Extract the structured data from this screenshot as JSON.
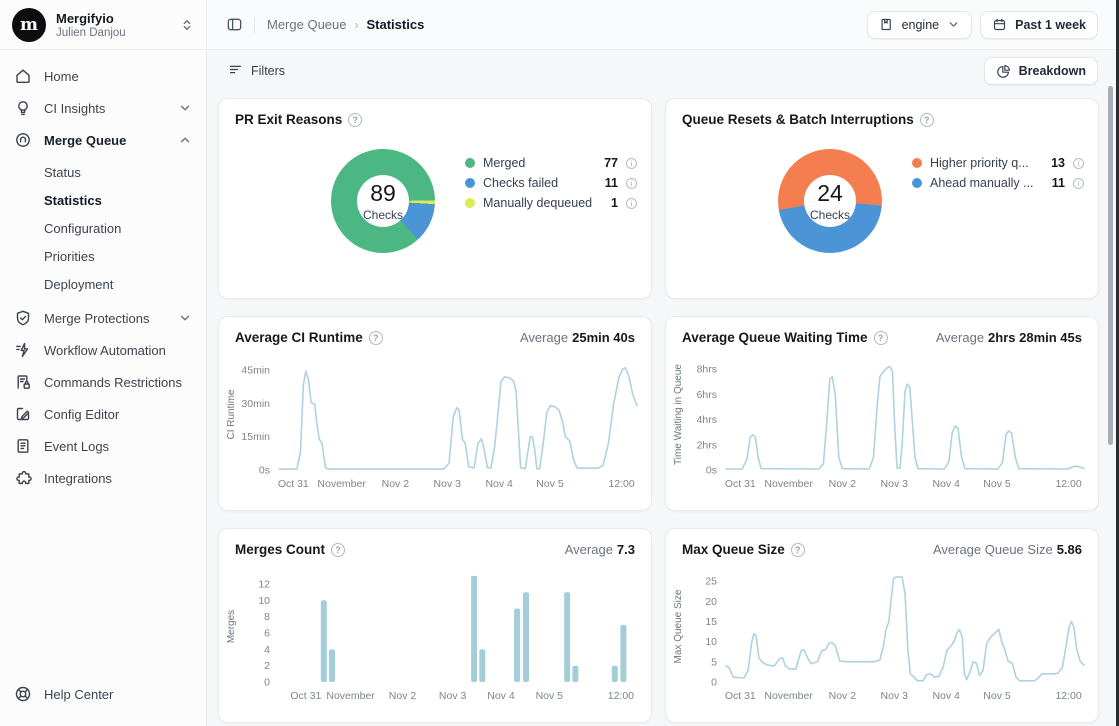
{
  "sidebar": {
    "org": "Mergifyio",
    "user": "Julien Danjou",
    "items": [
      {
        "label": "Home",
        "icon": "home-icon"
      },
      {
        "label": "CI Insights",
        "icon": "lightbulb-icon",
        "chevron": "down"
      },
      {
        "label": "Merge Queue",
        "icon": "merge-queue-icon",
        "chevron": "up",
        "active_section": true,
        "children": [
          {
            "label": "Status"
          },
          {
            "label": "Statistics",
            "active": true
          },
          {
            "label": "Configuration"
          },
          {
            "label": "Priorities"
          },
          {
            "label": "Deployment"
          }
        ]
      },
      {
        "label": "Merge Protections",
        "icon": "shield-check-icon",
        "chevron": "down"
      },
      {
        "label": "Workflow Automation",
        "icon": "workflow-icon"
      },
      {
        "label": "Commands Restrictions",
        "icon": "commands-lock-icon"
      },
      {
        "label": "Config Editor",
        "icon": "config-editor-icon"
      },
      {
        "label": "Event Logs",
        "icon": "event-logs-icon"
      },
      {
        "label": "Integrations",
        "icon": "integrations-icon"
      }
    ],
    "help_label": "Help Center"
  },
  "header": {
    "breadcrumb": {
      "parent": "Merge Queue",
      "current": "Statistics"
    },
    "scope_button": {
      "label": "engine"
    },
    "range_button": {
      "label": "Past 1 week"
    }
  },
  "toolbar": {
    "filters_label": "Filters",
    "breakdown_label": "Breakdown"
  },
  "chart_data": [
    {
      "type": "pie",
      "title": "PR Exit Reasons",
      "center_value": 89,
      "center_label": "Checks",
      "start_angle": 138,
      "draw_order": [
        0,
        2,
        1
      ],
      "slices": [
        {
          "label": "Merged",
          "value": 77,
          "color": "#4cb782"
        },
        {
          "label": "Checks failed",
          "value": 11,
          "color": "#4b95d6"
        },
        {
          "label": "Manually dequeued",
          "value": 1,
          "color": "#d9ec57"
        }
      ]
    },
    {
      "type": "pie",
      "title": "Queue Resets & Batch Interruptions",
      "center_value": 24,
      "center_label": "Checks",
      "start_angle": 260,
      "draw_order": [
        0,
        1
      ],
      "slices": [
        {
          "label": "Higher priority q...",
          "value": 13,
          "color": "#f57e51"
        },
        {
          "label": "Ahead manually ...",
          "value": 11,
          "color": "#4b95d6"
        }
      ]
    },
    {
      "type": "line",
      "title": "Average CI Runtime",
      "average_label": "Average",
      "average_value": "25min 40s",
      "ylabel": "CI Runtime",
      "color": "#aed2e0",
      "ylim": [
        0,
        50
      ],
      "yticks": [
        {
          "v": 0,
          "label": "0s"
        },
        {
          "v": 15,
          "label": "15min"
        },
        {
          "v": 30,
          "label": "30min"
        },
        {
          "v": 45,
          "label": "45min"
        }
      ],
      "xticks": [
        {
          "f": 0.04,
          "label": "Oct 31"
        },
        {
          "f": 0.175,
          "label": "November"
        },
        {
          "f": 0.325,
          "label": "Nov 2"
        },
        {
          "f": 0.47,
          "label": "Nov 3"
        },
        {
          "f": 0.615,
          "label": "Nov 4"
        },
        {
          "f": 0.757,
          "label": "Nov 5"
        },
        {
          "f": 0.957,
          "label": "12:00"
        }
      ],
      "points": [
        [
          0,
          0.4
        ],
        [
          0.05,
          0.4
        ],
        [
          0.06,
          8
        ],
        [
          0.068,
          38
        ],
        [
          0.075,
          44.5
        ],
        [
          0.082,
          41
        ],
        [
          0.09,
          30.5
        ],
        [
          0.1,
          29.5
        ],
        [
          0.105,
          22
        ],
        [
          0.112,
          14
        ],
        [
          0.12,
          12
        ],
        [
          0.13,
          1
        ],
        [
          0.14,
          0.4
        ],
        [
          0.46,
          0.4
        ],
        [
          0.475,
          3
        ],
        [
          0.487,
          24
        ],
        [
          0.497,
          28
        ],
        [
          0.503,
          27
        ],
        [
          0.512,
          14
        ],
        [
          0.52,
          12
        ],
        [
          0.53,
          1.5
        ],
        [
          0.545,
          1
        ],
        [
          0.556,
          12
        ],
        [
          0.565,
          14
        ],
        [
          0.572,
          10
        ],
        [
          0.582,
          1
        ],
        [
          0.592,
          1
        ],
        [
          0.602,
          10
        ],
        [
          0.612,
          26
        ],
        [
          0.62,
          40
        ],
        [
          0.63,
          42
        ],
        [
          0.645,
          41.5
        ],
        [
          0.655,
          40
        ],
        [
          0.662,
          36
        ],
        [
          0.668,
          20
        ],
        [
          0.675,
          1
        ],
        [
          0.688,
          0.6
        ],
        [
          0.695,
          8
        ],
        [
          0.702,
          15
        ],
        [
          0.708,
          15
        ],
        [
          0.715,
          8
        ],
        [
          0.72,
          0.6
        ],
        [
          0.728,
          0.6
        ],
        [
          0.738,
          12
        ],
        [
          0.748,
          26
        ],
        [
          0.758,
          29
        ],
        [
          0.77,
          28.5
        ],
        [
          0.782,
          27
        ],
        [
          0.792,
          22
        ],
        [
          0.8,
          15
        ],
        [
          0.812,
          13
        ],
        [
          0.822,
          5
        ],
        [
          0.832,
          1
        ],
        [
          0.845,
          0.8
        ],
        [
          0.87,
          0.8
        ],
        [
          0.89,
          0.8
        ],
        [
          0.905,
          2
        ],
        [
          0.92,
          12
        ],
        [
          0.935,
          30
        ],
        [
          0.95,
          42
        ],
        [
          0.96,
          45.5
        ],
        [
          0.968,
          46
        ],
        [
          0.978,
          42
        ],
        [
          0.988,
          34
        ],
        [
          1,
          29
        ]
      ]
    },
    {
      "type": "line",
      "title": "Average Queue Waiting Time",
      "average_label": "Average",
      "average_value": "2hrs 28min 45s",
      "ylabel": "Time Waiting in Queue",
      "color": "#aed2e0",
      "ylim": [
        0,
        8.8
      ],
      "yticks": [
        {
          "v": 0,
          "label": "0s"
        },
        {
          "v": 2,
          "label": "2hrs"
        },
        {
          "v": 4,
          "label": "4hrs"
        },
        {
          "v": 6,
          "label": "6hrs"
        },
        {
          "v": 8,
          "label": "8hrs"
        }
      ],
      "xticks": [
        {
          "f": 0.04,
          "label": "Oct 31"
        },
        {
          "f": 0.175,
          "label": "November"
        },
        {
          "f": 0.325,
          "label": "Nov 2"
        },
        {
          "f": 0.47,
          "label": "Nov 3"
        },
        {
          "f": 0.615,
          "label": "Nov 4"
        },
        {
          "f": 0.757,
          "label": "Nov 5"
        },
        {
          "f": 0.957,
          "label": "12:00"
        }
      ],
      "points": [
        [
          0,
          0.08
        ],
        [
          0.045,
          0.08
        ],
        [
          0.058,
          0.8
        ],
        [
          0.068,
          2.6
        ],
        [
          0.075,
          2.8
        ],
        [
          0.082,
          2.6
        ],
        [
          0.09,
          1
        ],
        [
          0.098,
          0.1
        ],
        [
          0.26,
          0.08
        ],
        [
          0.272,
          0.5
        ],
        [
          0.282,
          4
        ],
        [
          0.29,
          7.2
        ],
        [
          0.297,
          7.4
        ],
        [
          0.305,
          6
        ],
        [
          0.315,
          1
        ],
        [
          0.325,
          0.1
        ],
        [
          0.4,
          0.08
        ],
        [
          0.412,
          1
        ],
        [
          0.422,
          5
        ],
        [
          0.43,
          7.4
        ],
        [
          0.44,
          7.8
        ],
        [
          0.45,
          8.1
        ],
        [
          0.458,
          8.2
        ],
        [
          0.465,
          7.8
        ],
        [
          0.472,
          3
        ],
        [
          0.478,
          0.15
        ],
        [
          0.486,
          0.15
        ],
        [
          0.492,
          2
        ],
        [
          0.5,
          6.2
        ],
        [
          0.506,
          6.8
        ],
        [
          0.513,
          6.6
        ],
        [
          0.52,
          4
        ],
        [
          0.528,
          1
        ],
        [
          0.536,
          0.1
        ],
        [
          0.61,
          0.08
        ],
        [
          0.622,
          0.6
        ],
        [
          0.632,
          3
        ],
        [
          0.64,
          3.5
        ],
        [
          0.648,
          3.3
        ],
        [
          0.658,
          1
        ],
        [
          0.668,
          0.1
        ],
        [
          0.76,
          0.08
        ],
        [
          0.772,
          0.6
        ],
        [
          0.782,
          2.8
        ],
        [
          0.79,
          3.1
        ],
        [
          0.798,
          2.9
        ],
        [
          0.808,
          1
        ],
        [
          0.818,
          0.1
        ],
        [
          0.955,
          0.08
        ],
        [
          0.968,
          0.25
        ],
        [
          0.982,
          0.3
        ],
        [
          1,
          0.12
        ]
      ]
    },
    {
      "type": "bar",
      "title": "Merges Count",
      "average_label": "Average",
      "average_value": "7.3",
      "ylabel": "Merges",
      "color": "#a3ced9",
      "ylim": [
        0,
        13.6
      ],
      "yticks": [
        {
          "v": 0,
          "label": "0"
        },
        {
          "v": 2,
          "label": "2"
        },
        {
          "v": 4,
          "label": "4"
        },
        {
          "v": 6,
          "label": "6"
        },
        {
          "v": 8,
          "label": "8"
        },
        {
          "v": 10,
          "label": "10"
        },
        {
          "v": 12,
          "label": "12"
        }
      ],
      "xticks": [
        {
          "f": 0.075,
          "label": "Oct 31"
        },
        {
          "f": 0.2,
          "label": "November"
        },
        {
          "f": 0.345,
          "label": "Nov 2"
        },
        {
          "f": 0.485,
          "label": "Nov 3"
        },
        {
          "f": 0.62,
          "label": "Nov 4"
        },
        {
          "f": 0.755,
          "label": "Nov 5"
        },
        {
          "f": 0.955,
          "label": "12:00"
        }
      ],
      "bars": [
        [
          0.125,
          10
        ],
        [
          0.148,
          4
        ],
        [
          0.545,
          13
        ],
        [
          0.568,
          4
        ],
        [
          0.665,
          9
        ],
        [
          0.69,
          11
        ],
        [
          0.805,
          11
        ],
        [
          0.828,
          2
        ],
        [
          0.938,
          2
        ],
        [
          0.962,
          7
        ]
      ]
    },
    {
      "type": "line",
      "title": "Max Queue Size",
      "average_label": "Average Queue Size",
      "average_value": "5.86",
      "ylabel": "Max Queue Size",
      "color": "#aed2e0",
      "ylim": [
        0,
        27.5
      ],
      "yticks": [
        {
          "v": 0,
          "label": "0"
        },
        {
          "v": 5,
          "label": "5"
        },
        {
          "v": 10,
          "label": "10"
        },
        {
          "v": 15,
          "label": "15"
        },
        {
          "v": 20,
          "label": "20"
        },
        {
          "v": 25,
          "label": "25"
        }
      ],
      "xticks": [
        {
          "f": 0.04,
          "label": "Oct 31"
        },
        {
          "f": 0.175,
          "label": "November"
        },
        {
          "f": 0.325,
          "label": "Nov 2"
        },
        {
          "f": 0.47,
          "label": "Nov 3"
        },
        {
          "f": 0.615,
          "label": "Nov 4"
        },
        {
          "f": 0.757,
          "label": "Nov 5"
        },
        {
          "f": 0.957,
          "label": "12:00"
        }
      ],
      "points": [
        [
          0,
          4
        ],
        [
          0.008,
          3.6
        ],
        [
          0.02,
          1.2
        ],
        [
          0.05,
          1
        ],
        [
          0.062,
          3
        ],
        [
          0.072,
          10
        ],
        [
          0.078,
          12
        ],
        [
          0.084,
          11.5
        ],
        [
          0.092,
          6
        ],
        [
          0.1,
          5
        ],
        [
          0.115,
          4.2
        ],
        [
          0.135,
          4
        ],
        [
          0.15,
          5.8
        ],
        [
          0.158,
          6
        ],
        [
          0.166,
          4
        ],
        [
          0.178,
          3.2
        ],
        [
          0.195,
          3.2
        ],
        [
          0.21,
          7.8
        ],
        [
          0.218,
          8
        ],
        [
          0.228,
          6
        ],
        [
          0.238,
          4.5
        ],
        [
          0.255,
          5
        ],
        [
          0.268,
          7.8
        ],
        [
          0.278,
          8
        ],
        [
          0.288,
          9.6
        ],
        [
          0.295,
          9.8
        ],
        [
          0.305,
          9
        ],
        [
          0.318,
          5.2
        ],
        [
          0.34,
          5
        ],
        [
          0.415,
          5
        ],
        [
          0.43,
          5.5
        ],
        [
          0.44,
          9
        ],
        [
          0.447,
          13
        ],
        [
          0.455,
          15
        ],
        [
          0.462,
          21
        ],
        [
          0.468,
          25.5
        ],
        [
          0.474,
          26
        ],
        [
          0.492,
          26
        ],
        [
          0.5,
          22
        ],
        [
          0.508,
          8
        ],
        [
          0.515,
          2
        ],
        [
          0.525,
          1.2
        ],
        [
          0.535,
          0.3
        ],
        [
          0.55,
          0.3
        ],
        [
          0.56,
          1.8
        ],
        [
          0.572,
          2
        ],
        [
          0.582,
          1.2
        ],
        [
          0.595,
          1.4
        ],
        [
          0.607,
          3.8
        ],
        [
          0.617,
          7.8
        ],
        [
          0.627,
          8.8
        ],
        [
          0.637,
          10
        ],
        [
          0.645,
          12.2
        ],
        [
          0.652,
          13
        ],
        [
          0.66,
          11
        ],
        [
          0.666,
          2
        ],
        [
          0.672,
          0.6
        ],
        [
          0.682,
          2.6
        ],
        [
          0.69,
          5
        ],
        [
          0.7,
          4.6
        ],
        [
          0.708,
          1.6
        ],
        [
          0.718,
          2.8
        ],
        [
          0.728,
          9.5
        ],
        [
          0.74,
          11.2
        ],
        [
          0.752,
          12.2
        ],
        [
          0.762,
          13
        ],
        [
          0.77,
          10
        ],
        [
          0.778,
          8.2
        ],
        [
          0.788,
          5.2
        ],
        [
          0.8,
          4.6
        ],
        [
          0.81,
          1.2
        ],
        [
          0.82,
          0.3
        ],
        [
          0.862,
          0.3
        ],
        [
          0.872,
          1
        ],
        [
          0.882,
          2
        ],
        [
          0.915,
          2
        ],
        [
          0.928,
          2.2
        ],
        [
          0.94,
          3.8
        ],
        [
          0.95,
          9
        ],
        [
          0.958,
          13.5
        ],
        [
          0.965,
          15
        ],
        [
          0.972,
          13.5
        ],
        [
          0.98,
          8
        ],
        [
          0.99,
          5
        ],
        [
          1,
          4.2
        ]
      ]
    }
  ]
}
